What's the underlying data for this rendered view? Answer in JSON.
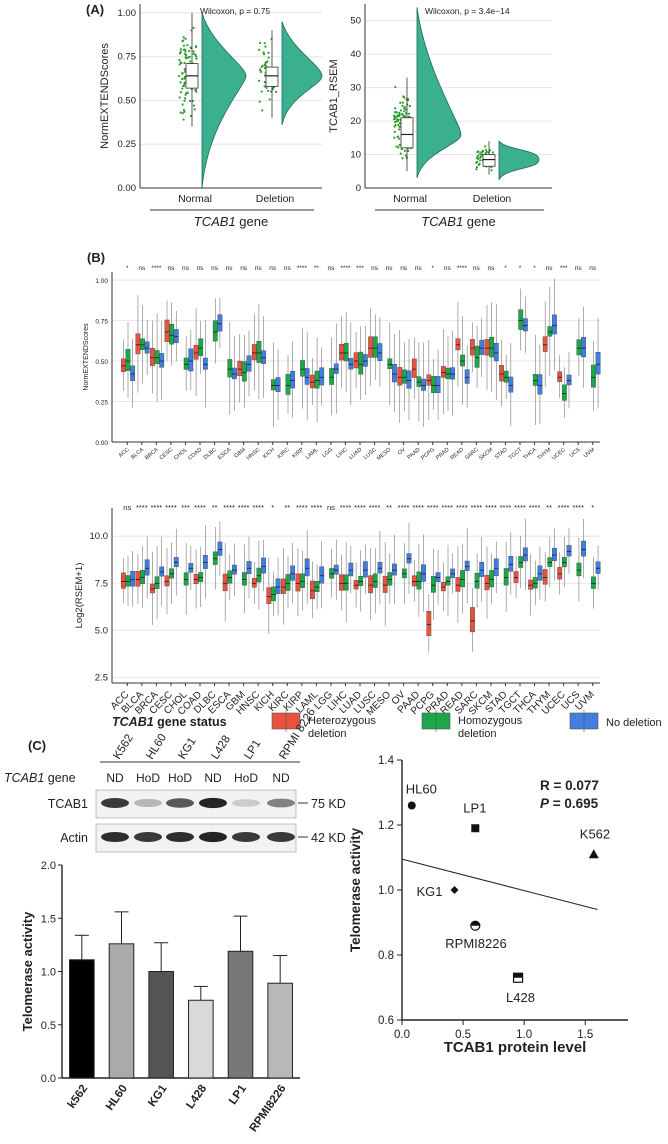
{
  "panel_labels": {
    "a": "(A)",
    "b": "(B)",
    "c": "(C)"
  },
  "categories_ab": [
    "Normal",
    "Deletion"
  ],
  "gene_axis_label": "gene",
  "gene_italic": "TCAB1",
  "legend": {
    "title": "gene status",
    "items": [
      {
        "label": "Heterozygous deletion",
        "color": "#e8533f"
      },
      {
        "label": "Homozygous deletion",
        "color": "#1ca84a"
      },
      {
        "label": "No deletion",
        "color": "#3f7fe0"
      }
    ]
  },
  "blot": {
    "cell_lines": [
      "K562",
      "HL60",
      "KG1",
      "L428",
      "LP1",
      "RPMI 8226"
    ],
    "status_label_suffix": "gene",
    "status": [
      "ND",
      "HoD",
      "HoD",
      "ND",
      "HoD",
      "ND"
    ],
    "rows": [
      {
        "label": "TCAB1",
        "size": "75 KD",
        "intensity": [
          0.85,
          0.25,
          0.7,
          0.95,
          0.15,
          0.5
        ]
      },
      {
        "label": "Actin",
        "size": "42 KD",
        "intensity": [
          0.9,
          0.85,
          0.9,
          0.95,
          0.85,
          0.85
        ]
      }
    ]
  },
  "colors": {
    "violin": "#3bb08f",
    "point": "#2e9a2e",
    "het": "#e8533f",
    "hom": "#1ca84a",
    "nodel": "#3f7fe0"
  },
  "chart_data": [
    {
      "type": "violin",
      "panel": "A-left",
      "title": "Wilcoxon, p = 0.75",
      "ylabel": "NormEXTENDScores",
      "categories": [
        "Normal",
        "Deletion"
      ],
      "yticks": [
        "0.00",
        "0.25",
        "0.50",
        "0.75",
        "1.00"
      ],
      "ylim": [
        0,
        1.05
      ],
      "boxes": [
        {
          "q1": 0.57,
          "median": 0.64,
          "q3": 0.71,
          "lo": 0.35,
          "hi": 1.0
        },
        {
          "q1": 0.58,
          "median": 0.64,
          "q3": 0.69,
          "lo": 0.4,
          "hi": 0.9
        }
      ],
      "violin_range": [
        [
          0.0,
          1.0
        ],
        [
          0.36,
          0.95
        ]
      ]
    },
    {
      "type": "violin",
      "panel": "A-right",
      "title": "Wilcoxon, p = 3.4e−14",
      "ylabel": "TCAB1_RSEM",
      "categories": [
        "Normal",
        "Deletion"
      ],
      "yticks": [
        "0",
        "10",
        "20",
        "30",
        "40",
        "50"
      ],
      "ylim": [
        0,
        55
      ],
      "boxes": [
        {
          "q1": 12,
          "median": 16,
          "q3": 21,
          "lo": 5,
          "hi": 33
        },
        {
          "q1": 6.5,
          "median": 8.5,
          "q3": 10,
          "lo": 4,
          "hi": 14
        }
      ],
      "violin_range": [
        [
          3,
          54
        ],
        [
          2.5,
          14
        ]
      ]
    },
    {
      "type": "box",
      "panel": "B-top",
      "ylabel": "NormEXTENDScores",
      "ylim": [
        0,
        1.05
      ],
      "yticks": [
        "0.00",
        "0.25",
        "0.50",
        "0.75",
        "1.00"
      ],
      "categories": [
        "ACC",
        "BLCA",
        "BRCA",
        "CESC",
        "CHOL",
        "COAD",
        "DLBC",
        "ESCA",
        "GBM",
        "HNSC",
        "KICH",
        "KIRC",
        "KIRP",
        "LAML",
        "LGG",
        "LIHC",
        "LUAD",
        "LUSC",
        "MESO",
        "OV",
        "PAAD",
        "PCPG",
        "PRAD",
        "READ",
        "SARC",
        "SKCM",
        "STAD",
        "TGCT",
        "THCA",
        "THYM",
        "UCEC",
        "UCS",
        "UVM"
      ],
      "significance": [
        "*",
        "ns",
        "****",
        "ns",
        "ns",
        "ns",
        "ns",
        "ns",
        "ns",
        "ns",
        "ns",
        "ns",
        "****",
        "**",
        "ns",
        "****",
        "***",
        "ns",
        "ns",
        "ns",
        "ns",
        "*",
        "ns",
        "****",
        "ns",
        "ns",
        "*",
        "*",
        "*",
        "ns",
        "***",
        "ns",
        "ns"
      ],
      "medians": {
        "het": [
          0.47,
          0.6,
          0.52,
          0.68,
          null,
          0.55,
          null,
          null,
          0.45,
          0.55,
          null,
          null,
          null,
          0.37,
          null,
          0.55,
          0.5,
          0.58,
          null,
          0.4,
          0.45,
          0.38,
          0.43,
          0.6,
          0.58,
          0.58,
          0.42,
          null,
          null,
          0.6,
          0.4,
          null,
          null
        ],
        "hom": [
          0.5,
          0.6,
          0.52,
          0.66,
          0.48,
          0.58,
          0.68,
          0.45,
          0.43,
          0.55,
          0.35,
          0.35,
          0.45,
          0.38,
          0.4,
          0.55,
          0.48,
          0.58,
          0.48,
          0.4,
          0.37,
          0.35,
          0.42,
          0.5,
          0.52,
          0.58,
          0.4,
          0.75,
          0.38,
          0.68,
          0.3,
          0.58,
          0.4
        ],
        "nodel": [
          0.42,
          0.58,
          0.5,
          0.65,
          0.5,
          0.48,
          0.73,
          0.42,
          0.48,
          0.52,
          0.35,
          0.38,
          0.4,
          0.4,
          0.45,
          0.48,
          0.5,
          0.55,
          0.42,
          0.38,
          0.35,
          0.35,
          0.42,
          0.4,
          0.58,
          0.55,
          0.35,
          0.72,
          0.35,
          0.72,
          0.38,
          0.58,
          0.48
        ]
      }
    },
    {
      "type": "box",
      "panel": "B-bottom",
      "ylabel": "Log2(RSEM+1)",
      "ylim": [
        2.2,
        11.5
      ],
      "yticks": [
        "2.5",
        "5.0",
        "7.5",
        "10.0"
      ],
      "categories": [
        "ACC",
        "BLCA",
        "BRCA",
        "CESC",
        "CHOL",
        "COAD",
        "DLBC",
        "ESCA",
        "GBM",
        "HNSC",
        "KICH",
        "KIRC",
        "KIRP",
        "LAML",
        "LGG",
        "LIHC",
        "LUAD",
        "LUSC",
        "MESO",
        "OV",
        "PAAD",
        "PCPG",
        "PRAD",
        "READ",
        "SARC",
        "SKCM",
        "STAD",
        "TGCT",
        "THCA",
        "THYM",
        "UCEC",
        "UCS",
        "UVM"
      ],
      "significance": [
        "ns",
        "****",
        "****",
        "****",
        "***",
        "****",
        "**",
        "****",
        "****",
        "****",
        "*",
        "**",
        "****",
        "****",
        "ns",
        "****",
        "****",
        "****",
        "**",
        "****",
        "****",
        "****",
        "****",
        "****",
        "****",
        "****",
        "****",
        "****",
        "****",
        "**",
        "****",
        "****",
        "*"
      ],
      "medians": {
        "het": [
          7.6,
          7.7,
          7.2,
          7.6,
          null,
          7.7,
          null,
          7.5,
          null,
          7.5,
          6.8,
          7.3,
          7.5,
          7.1,
          null,
          7.5,
          7.4,
          7.4,
          7.4,
          null,
          7.6,
          5.3,
          7.3,
          7.4,
          5.5,
          7.5,
          null,
          7.8,
          7.4,
          7.8,
          8.0,
          null,
          null
        ],
        "hom": [
          7.6,
          7.8,
          7.5,
          8.0,
          7.7,
          7.8,
          8.8,
          7.8,
          7.7,
          7.9,
          6.9,
          7.5,
          7.6,
          7.3,
          8.0,
          7.5,
          7.6,
          7.6,
          7.7,
          8.0,
          7.6,
          7.4,
          7.6,
          7.7,
          7.6,
          7.7,
          7.8,
          8.6,
          7.5,
          8.6,
          8.6,
          8.2,
          7.5
        ],
        "nodel": [
          7.7,
          8.3,
          8.1,
          8.6,
          8.3,
          8.6,
          9.3,
          8.2,
          8.3,
          8.4,
          7.3,
          8.0,
          8.3,
          7.9,
          8.2,
          8.2,
          8.2,
          8.3,
          8.2,
          8.8,
          8.0,
          7.8,
          8.0,
          8.4,
          8.2,
          8.3,
          8.5,
          9.0,
          8.0,
          9.0,
          9.2,
          9.3,
          8.3
        ]
      }
    },
    {
      "type": "bar",
      "panel": "C-left",
      "ylabel": "Telomerase activity",
      "categories": [
        "k562",
        "HL60",
        "KG1",
        "L428",
        "LP1",
        "RPMI8226"
      ],
      "values": [
        1.11,
        1.26,
        1.0,
        0.73,
        1.19,
        0.89
      ],
      "errors": [
        0.23,
        0.3,
        0.27,
        0.13,
        0.33,
        0.26
      ],
      "bar_colors": [
        "#000000",
        "#aaaaaa",
        "#555555",
        "#d9d9d9",
        "#777777",
        "#b8b8b8"
      ],
      "ylim": [
        0,
        2.0
      ],
      "yticks": [
        "0.0",
        "0.5",
        "1.0",
        "1.5",
        "2.0"
      ]
    },
    {
      "type": "scatter",
      "panel": "C-right",
      "xlabel": "TCAB1 protein level",
      "ylabel": "Telomerase activity",
      "annotation_r": "R = 0.077",
      "annotation_p_label": "P",
      "annotation_p_value": " = 0.695",
      "xlim": [
        0,
        1.85
      ],
      "ylim": [
        0.6,
        1.4
      ],
      "xticks": [
        "0.0",
        "0.5",
        "1.0",
        "1.5"
      ],
      "yticks": [
        "0.6",
        "0.8",
        "1.0",
        "1.2",
        "1.4"
      ],
      "points": [
        {
          "label": "HL60",
          "x": 0.08,
          "y": 1.26,
          "marker": "circle"
        },
        {
          "label": "LP1",
          "x": 0.6,
          "y": 1.19,
          "marker": "square"
        },
        {
          "label": "K562",
          "x": 1.57,
          "y": 1.11,
          "marker": "triangle"
        },
        {
          "label": "KG1",
          "x": 0.43,
          "y": 1.0,
          "marker": "diamond"
        },
        {
          "label": "RPMI8226",
          "x": 0.6,
          "y": 0.89,
          "marker": "half-circle"
        },
        {
          "label": "L428",
          "x": 0.95,
          "y": 0.73,
          "marker": "half-square"
        }
      ],
      "fit_line": [
        [
          0.0,
          1.095
        ],
        [
          1.6,
          0.94
        ]
      ]
    }
  ]
}
